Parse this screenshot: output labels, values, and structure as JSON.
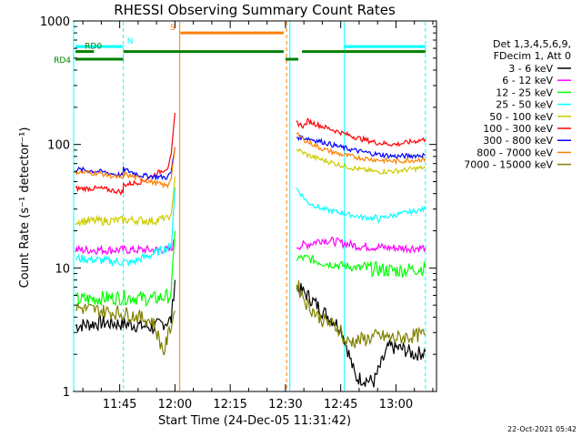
{
  "chart_data": {
    "type": "line",
    "title": "RHESSI Observing Summary Count Rates",
    "xlabel": "Start Time (24-Dec-05 11:31:42)",
    "ylabel": "Count Rate (s⁻¹ detector⁻¹)",
    "y_scale": "log",
    "ylim": [
      1,
      1000
    ],
    "xlim_minutes_after_1130": [
      2.5,
      101
    ],
    "x_ticks": [
      {
        "label": "11:45",
        "t": 15
      },
      {
        "label": "12:00",
        "t": 30
      },
      {
        "label": "12:15",
        "t": 45
      },
      {
        "label": "12:30",
        "t": 60
      },
      {
        "label": "12:45",
        "t": 75
      },
      {
        "label": "13:00",
        "t": 90
      }
    ],
    "y_ticks": [
      {
        "label": "1",
        "v": 1
      },
      {
        "label": "10",
        "v": 10
      },
      {
        "label": "100",
        "v": 100
      },
      {
        "label": "1000",
        "v": 1000
      }
    ],
    "legend_header": [
      "Det 1,3,4,5,6,9,",
      "FDecim 1, Att 0"
    ],
    "legend_position": "right",
    "series": [
      {
        "name": "3 - 6 keV",
        "color": "#000000",
        "segments": [
          {
            "t": [
              3,
              10,
              18,
              24,
              29,
              30
            ],
            "v": [
              3.4,
              3.6,
              3.5,
              3.3,
              3.8,
              8
            ]
          },
          {
            "t": [
              63,
              66,
              70,
              75,
              76,
              79,
              84,
              88,
              92,
              95,
              98
            ],
            "v": [
              7,
              6,
              4.5,
              3.3,
              2.7,
              1.3,
              1.2,
              2.3,
              2.2,
              2.0,
              2.1
            ]
          }
        ]
      },
      {
        "name": "6 - 12 keV",
        "color": "#ff00ff",
        "segments": [
          {
            "t": [
              3,
              10,
              18,
              24,
              29,
              30
            ],
            "v": [
              14,
              14,
              14,
              14,
              14,
              17
            ]
          },
          {
            "t": [
              63,
              66,
              70,
              75,
              80,
              90,
              98
            ],
            "v": [
              15,
              15.5,
              17,
              16,
              15,
              14.5,
              14.5
            ]
          }
        ]
      },
      {
        "name": "12 - 25 keV",
        "color": "#00ff00",
        "segments": [
          {
            "t": [
              3,
              10,
              18,
              24,
              29,
              30
            ],
            "v": [
              5.5,
              5.7,
              5.8,
              5.6,
              6.0,
              20
            ]
          },
          {
            "t": [
              63,
              66,
              70,
              75,
              80,
              90,
              98
            ],
            "v": [
              12,
              12,
              11,
              10.5,
              10,
              9.5,
              10
            ]
          }
        ]
      },
      {
        "name": "25 - 50 keV",
        "color": "#00ffff",
        "segments": [
          {
            "t": [
              3,
              10,
              18,
              24,
              29,
              30
            ],
            "v": [
              12,
              11.5,
              11,
              13,
              15,
              45
            ]
          },
          {
            "t": [
              63,
              66,
              70,
              75,
              80,
              85,
              90,
              98
            ],
            "v": [
              44,
              34,
              30,
              28,
              26,
              25,
              27,
              30
            ]
          }
        ]
      },
      {
        "name": "50 - 100 keV",
        "color": "#cccc00",
        "segments": [
          {
            "t": [
              3,
              10,
              18,
              24,
              29,
              30
            ],
            "v": [
              24,
              24,
              24.5,
              24,
              26,
              55
            ]
          },
          {
            "t": [
              63,
              66,
              70,
              75,
              80,
              85,
              90,
              98
            ],
            "v": [
              92,
              82,
              75,
              68,
              63,
              60,
              61,
              65
            ]
          }
        ]
      },
      {
        "name": "100 - 300 keV",
        "color": "#ff0000",
        "segments": [
          {
            "t": [
              3,
              10,
              15.9,
              16,
              21,
              28,
              29,
              30
            ],
            "v": [
              44,
              44,
              41,
              47,
              50,
              65,
              80,
              180
            ]
          },
          {
            "t": [
              63,
              65,
              66,
              70,
              75,
              80,
              85,
              90,
              98
            ],
            "v": [
              150,
              140,
              155,
              140,
              125,
              112,
              103,
              100,
              110
            ]
          }
        ]
      },
      {
        "name": "300 - 800 keV",
        "color": "#0000ff",
        "segments": [
          {
            "t": [
              3,
              10,
              15.9,
              16,
              21,
              28,
              29,
              30
            ],
            "v": [
              63,
              60,
              56,
              63,
              56,
              54,
              60,
              95
            ]
          },
          {
            "t": [
              63,
              66,
              70,
              75,
              80,
              85,
              90,
              98
            ],
            "v": [
              115,
              112,
              105,
              95,
              88,
              83,
              80,
              82
            ]
          }
        ]
      },
      {
        "name": "800 - 7000 keV",
        "color": "#ff8000",
        "segments": [
          {
            "t": [
              3,
              10,
              15.9,
              16,
              21,
              28,
              29,
              30
            ],
            "v": [
              60,
              58,
              53,
              58,
              52,
              46,
              55,
              95
            ]
          },
          {
            "t": [
              63,
              66,
              70,
              75,
              80,
              85,
              90,
              98
            ],
            "v": [
              120,
              105,
              92,
              83,
              78,
              75,
              73,
              76
            ]
          }
        ]
      },
      {
        "name": "7000 - 15000 keV",
        "color": "#808000",
        "segments": [
          {
            "t": [
              3,
              10,
              18,
              24,
              26,
              27,
              29,
              30
            ],
            "v": [
              4.8,
              4.5,
              4.2,
              3.7,
              2.5,
              2.1,
              3.5,
              4.5
            ]
          },
          {
            "t": [
              63,
              66,
              70,
              75,
              76,
              80,
              85,
              90,
              98
            ],
            "v": [
              7.5,
              5.0,
              3.8,
              3.2,
              2.5,
              2.6,
              2.8,
              2.7,
              2.9
            ]
          }
        ]
      }
    ],
    "state_bars": [
      {
        "label": "N",
        "color": "#00ffff",
        "value": 620,
        "t": [
          3,
          15.9
        ],
        "label_t": 17
      },
      {
        "label": "N",
        "color": "#00ffff",
        "value": 620,
        "t": [
          76,
          98
        ],
        "label_t": null
      },
      {
        "label": "S",
        "color": "#ff8000",
        "value": 800,
        "t": [
          31.5,
          59.5
        ],
        "label_t": 28.7
      },
      {
        "label": "RD0",
        "color": "#008000",
        "value": 565,
        "t": [
          3,
          8
        ],
        "label_t": 5.5
      },
      {
        "label": "RD4",
        "color": "#008000",
        "value": 490,
        "t": [
          3,
          16
        ],
        "label_t": null
      },
      {
        "label": "",
        "color": "#008000",
        "value": 565,
        "t": [
          16,
          59.5
        ],
        "label_t": null
      },
      {
        "label": "",
        "color": "#008000",
        "value": 490,
        "t": [
          60,
          63.5
        ],
        "label_t": null
      },
      {
        "label": "",
        "color": "#008000",
        "value": 565,
        "t": [
          64.5,
          98
        ],
        "label_t": null
      }
    ],
    "left_labels": {
      "rd0": "",
      "rd4": "RD4"
    },
    "vlines": [
      {
        "t": 16,
        "color": "#00ffff",
        "dash": true
      },
      {
        "t": 31.3,
        "color": "#ff8000",
        "dash": false
      },
      {
        "t": 60.3,
        "color": "#ff8000",
        "dash": true
      },
      {
        "t": 61.2,
        "color": "#00ffff",
        "dash": false
      },
      {
        "t": 76,
        "color": "#00ffff",
        "dash": false
      },
      {
        "t": 98,
        "color": "#00ffff",
        "dash": true
      },
      {
        "t": 2.5,
        "color": "#00ffff",
        "dash": false
      }
    ]
  },
  "footer": {
    "timestamp": "22-Oct-2021 05:42"
  }
}
